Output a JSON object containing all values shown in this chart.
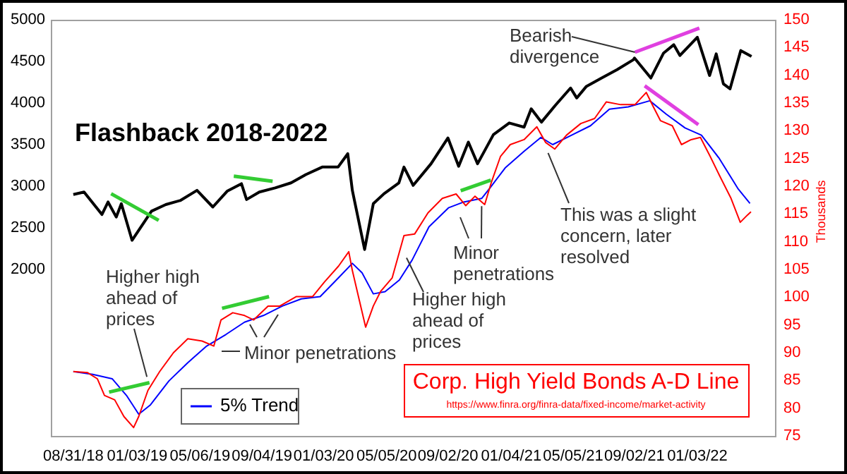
{
  "chart_data": {
    "type": "line",
    "title": "Flashback 2018-2022",
    "y2label": "Thousands",
    "xlim": [
      "2018-07-18",
      "2022-06-04"
    ],
    "xticks": [
      {
        "value": "2018-08-31",
        "label": "08/31/18"
      },
      {
        "value": "2019-01-03",
        "label": "01/03/19"
      },
      {
        "value": "2019-05-06",
        "label": "05/06/19"
      },
      {
        "value": "2019-09-04",
        "label": "09/04/19"
      },
      {
        "value": "2020-01-03",
        "label": "01/03/20"
      },
      {
        "value": "2020-05-05",
        "label": "05/05/20"
      },
      {
        "value": "2020-09-02",
        "label": "09/02/20"
      },
      {
        "value": "2021-01-04",
        "label": "01/04/21"
      },
      {
        "value": "2021-05-05",
        "label": "05/05/21"
      },
      {
        "value": "2021-09-02",
        "label": "09/02/21"
      },
      {
        "value": "2022-01-03",
        "label": "01/03/22"
      }
    ],
    "ylim": [
      0,
      5000
    ],
    "yticks": [
      2000,
      2500,
      3000,
      3500,
      4000,
      4500,
      5000
    ],
    "y2lim": [
      75,
      150
    ],
    "y2ticks": [
      75,
      80,
      85,
      90,
      95,
      100,
      105,
      110,
      115,
      120,
      125,
      130,
      135,
      140,
      145,
      150
    ],
    "grid": false,
    "legend": "bottom left",
    "marker": "none",
    "line_style": "solid",
    "series": [
      {
        "name": "Corp. High Yield Bonds A-D Line",
        "color": "#ff0000",
        "axis": "y2",
        "x": [
          "2018-08-31",
          "2018-09-28",
          "2018-10-17",
          "2018-10-31",
          "2018-11-20",
          "2018-12-08",
          "2018-12-27",
          "2019-01-06",
          "2019-01-24",
          "2019-02-16",
          "2019-03-15",
          "2019-04-12",
          "2019-05-10",
          "2019-06-02",
          "2019-06-16",
          "2019-07-09",
          "2019-08-01",
          "2019-08-19",
          "2019-09-16",
          "2019-10-09",
          "2019-11-10",
          "2019-12-12",
          "2020-01-04",
          "2020-02-01",
          "2020-02-21",
          "2020-02-28",
          "2020-03-25",
          "2020-04-09",
          "2020-04-23",
          "2020-05-16",
          "2020-06-08",
          "2020-06-29",
          "2020-07-25",
          "2020-08-22",
          "2020-09-18",
          "2020-10-07",
          "2020-10-25",
          "2020-11-13",
          "2020-11-26",
          "2020-12-14",
          "2021-01-02",
          "2021-01-29",
          "2021-02-23",
          "2021-03-12",
          "2021-03-30",
          "2021-04-22",
          "2021-05-20",
          "2021-06-16",
          "2021-07-09",
          "2021-08-06",
          "2021-09-03",
          "2021-09-25",
          "2021-10-09",
          "2021-10-23",
          "2021-11-15",
          "2021-12-03",
          "2021-12-22",
          "2022-01-09",
          "2022-01-28",
          "2022-02-15",
          "2022-03-10",
          "2022-03-28",
          "2022-04-11",
          "2022-04-18"
        ],
        "values": [
          86.6,
          86.4,
          85.3,
          82.3,
          81.5,
          78.5,
          76.5,
          78.5,
          83.2,
          86.6,
          90.0,
          92.5,
          92.1,
          91.2,
          95.9,
          97.2,
          96.7,
          95.9,
          98.4,
          98.4,
          100.1,
          100.1,
          102.7,
          105.6,
          108.2,
          104.8,
          94.6,
          98.4,
          101.0,
          103.5,
          111.1,
          111.4,
          115.2,
          117.8,
          118.6,
          116.5,
          118.2,
          116.7,
          120.7,
          125.4,
          127.5,
          128.4,
          130.7,
          127.9,
          126.7,
          129.2,
          131.3,
          132.2,
          135.2,
          134.7,
          134.7,
          136.9,
          134.3,
          131.8,
          130.9,
          127.5,
          128.4,
          128.8,
          125.4,
          122.0,
          117.8,
          113.5,
          114.8,
          115.4
        ]
      },
      {
        "name": "5% Trend",
        "color": "#0000ff",
        "axis": "y2",
        "x": [
          "2018-08-31",
          "2018-10-08",
          "2018-11-15",
          "2018-12-13",
          "2019-01-06",
          "2019-01-29",
          "2019-03-06",
          "2019-04-12",
          "2019-05-19",
          "2019-06-26",
          "2019-08-01",
          "2019-09-07",
          "2019-10-14",
          "2019-11-20",
          "2019-12-27",
          "2020-02-01",
          "2020-02-28",
          "2020-03-18",
          "2020-04-09",
          "2020-05-02",
          "2020-05-30",
          "2020-06-24",
          "2020-07-27",
          "2020-09-03",
          "2020-10-01",
          "2020-11-07",
          "2020-11-25",
          "2020-12-23",
          "2021-01-29",
          "2021-03-03",
          "2021-03-26",
          "2021-05-02",
          "2021-06-08",
          "2021-07-15",
          "2021-08-21",
          "2021-10-02",
          "2021-11-03",
          "2021-12-10",
          "2022-01-11",
          "2022-02-15",
          "2022-03-24",
          "2022-04-16"
        ],
        "values": [
          86.6,
          86.1,
          85.3,
          82.3,
          78.9,
          80.6,
          84.9,
          88.2,
          91.2,
          93.3,
          95.5,
          96.7,
          98.4,
          99.7,
          100.1,
          103.5,
          106.1,
          104.4,
          100.6,
          101.0,
          103.1,
          106.7,
          112.7,
          116.1,
          117.1,
          117.8,
          119.9,
          123.3,
          126.3,
          128.8,
          127.5,
          129.2,
          130.9,
          133.9,
          134.3,
          135.4,
          133.0,
          130.5,
          129.2,
          125.0,
          119.5,
          116.9
        ]
      },
      {
        "color": "#000000",
        "x": [
          "2018-08-31",
          "2018-09-21",
          "2018-10-26",
          "2018-11-07",
          "2018-11-23",
          "2018-12-03",
          "2018-12-24",
          "2019-01-31",
          "2019-02-28",
          "2019-03-29",
          "2019-04-30",
          "2019-05-31",
          "2019-06-28",
          "2019-07-26",
          "2019-08-05",
          "2019-08-30",
          "2019-09-30",
          "2019-10-31",
          "2019-11-29",
          "2019-12-31",
          "2020-01-31",
          "2020-02-19",
          "2020-02-28",
          "2020-03-23",
          "2020-04-09",
          "2020-04-30",
          "2020-05-29",
          "2020-06-08",
          "2020-06-26",
          "2020-07-31",
          "2020-09-02",
          "2020-09-23",
          "2020-10-12",
          "2020-10-30",
          "2020-11-30",
          "2020-12-31",
          "2021-01-29",
          "2021-02-12",
          "2021-03-04",
          "2021-03-31",
          "2021-04-30",
          "2021-05-12",
          "2021-05-31",
          "2021-06-30",
          "2021-07-30",
          "2021-08-31",
          "2021-09-02",
          "2021-10-04",
          "2021-10-29",
          "2021-11-18",
          "2021-11-30",
          "2021-12-31",
          "2022-01-03",
          "2022-01-27",
          "2022-02-09",
          "2022-02-23",
          "2022-03-08",
          "2022-03-29",
          "2022-04-19"
        ],
        "values": [
          2900,
          2930,
          2660,
          2810,
          2630,
          2790,
          2350,
          2700,
          2780,
          2830,
          2950,
          2750,
          2940,
          3030,
          2840,
          2930,
          2980,
          3040,
          3140,
          3230,
          3230,
          3390,
          2950,
          2240,
          2790,
          2910,
          3040,
          3230,
          3010,
          3270,
          3580,
          3240,
          3530,
          3270,
          3620,
          3760,
          3710,
          3930,
          3770,
          3970,
          4180,
          4060,
          4200,
          4300,
          4400,
          4520,
          4540,
          4300,
          4600,
          4700,
          4570,
          4770,
          4790,
          4330,
          4590,
          4230,
          4170,
          4630,
          4560
        ]
      },
      {
        "color": "#33cc33",
        "x": [
          "2018-11-13",
          "2019-02-14"
        ],
        "values": [
          2910,
          2590
        ]
      },
      {
        "color": "#33cc33",
        "x": [
          "2019-07-11",
          "2019-09-25"
        ],
        "values": [
          3120,
          3060
        ]
      },
      {
        "color": "#33cc33",
        "axis": "y2",
        "x": [
          "2018-11-09",
          "2019-01-27"
        ],
        "values": [
          82.9,
          84.6
        ]
      },
      {
        "color": "#33cc33",
        "axis": "y2",
        "x": [
          "2019-06-18",
          "2019-09-18"
        ],
        "values": [
          98.0,
          100.1
        ]
      },
      {
        "color": "#33cc33",
        "axis": "y2",
        "x": [
          "2020-09-27",
          "2020-11-25"
        ],
        "values": [
          119.2,
          121.1
        ]
      },
      {
        "color": "#e040e0",
        "x": [
          "2021-09-03",
          "2022-01-07"
        ],
        "values": [
          4610,
          4900
        ]
      },
      {
        "color": "#e040e0",
        "axis": "y2",
        "x": [
          "2021-09-22",
          "2022-01-05"
        ],
        "values": [
          138.1,
          131.1
        ]
      }
    ],
    "annotations": [
      {
        "text": "Higher high ahead of prices",
        "x": "2019-01-22",
        "y": 710
      },
      "Minor penetrations",
      {
        "text": "Higher high ahead of prices",
        "x": "2020-06-13",
        "y": 2140
      },
      {
        "text": "Minor penetrations",
        "x": "2020-11-07",
        "y": 2760
      },
      {
        "text": "This was a slight concern, later resolved",
        "x": "2021-03-17",
        "y": 3400
      },
      {
        "text": "Bearish divergence",
        "x": "2021-09-03",
        "y": 4610
      },
      "https://www.finra.org/finra-data/fixed-income/market-activity"
    ]
  }
}
